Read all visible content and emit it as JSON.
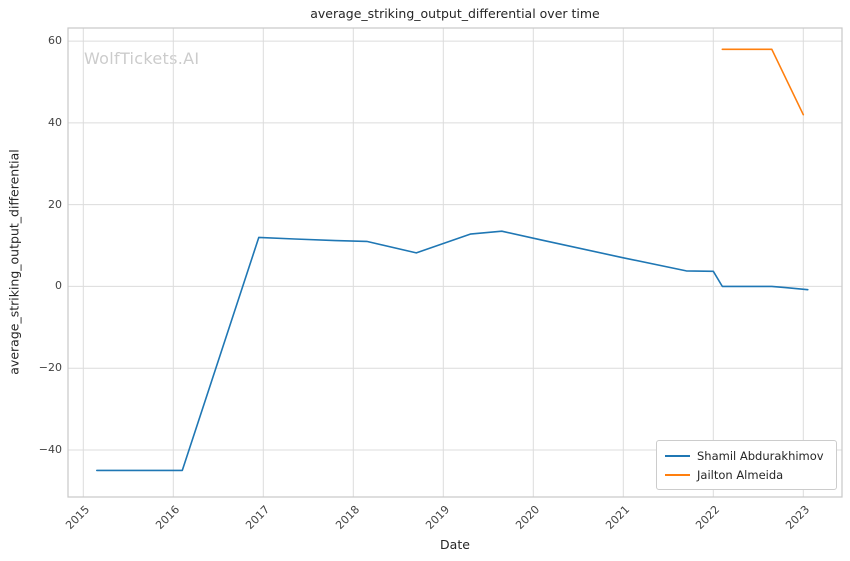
{
  "watermark": "WolfTickets.AI",
  "chart_data": {
    "type": "line",
    "title": "average_striking_output_differential over time",
    "xlabel": "Date",
    "ylabel": "average_striking_output_differential",
    "xlim": [
      2014.83,
      2023.43
    ],
    "ylim": [
      -51.5,
      63.2
    ],
    "xticks": [
      2015,
      2016,
      2017,
      2018,
      2019,
      2020,
      2021,
      2022,
      2023
    ],
    "yticks": [
      -40,
      -20,
      0,
      20,
      40,
      60
    ],
    "grid": true,
    "legend_position": "lower right",
    "series": [
      {
        "name": "Shamil Abdurakhimov",
        "color": "#1f77b4",
        "points": [
          [
            2015.15,
            -45
          ],
          [
            2016.1,
            -45
          ],
          [
            2016.95,
            12
          ],
          [
            2017.35,
            11.6
          ],
          [
            2017.8,
            11.2
          ],
          [
            2018.15,
            11
          ],
          [
            2018.7,
            8.2
          ],
          [
            2019.3,
            12.8
          ],
          [
            2019.65,
            13.5
          ],
          [
            2020.1,
            11.3
          ],
          [
            2021.0,
            7
          ],
          [
            2021.7,
            3.8
          ],
          [
            2022.0,
            3.7
          ],
          [
            2022.1,
            0
          ],
          [
            2022.65,
            0
          ],
          [
            2022.8,
            -0.3
          ],
          [
            2023.05,
            -0.8
          ]
        ]
      },
      {
        "name": "Jailton Almeida",
        "color": "#ff7f0e",
        "points": [
          [
            2022.1,
            58
          ],
          [
            2022.65,
            58
          ],
          [
            2023.0,
            42
          ]
        ]
      }
    ]
  }
}
